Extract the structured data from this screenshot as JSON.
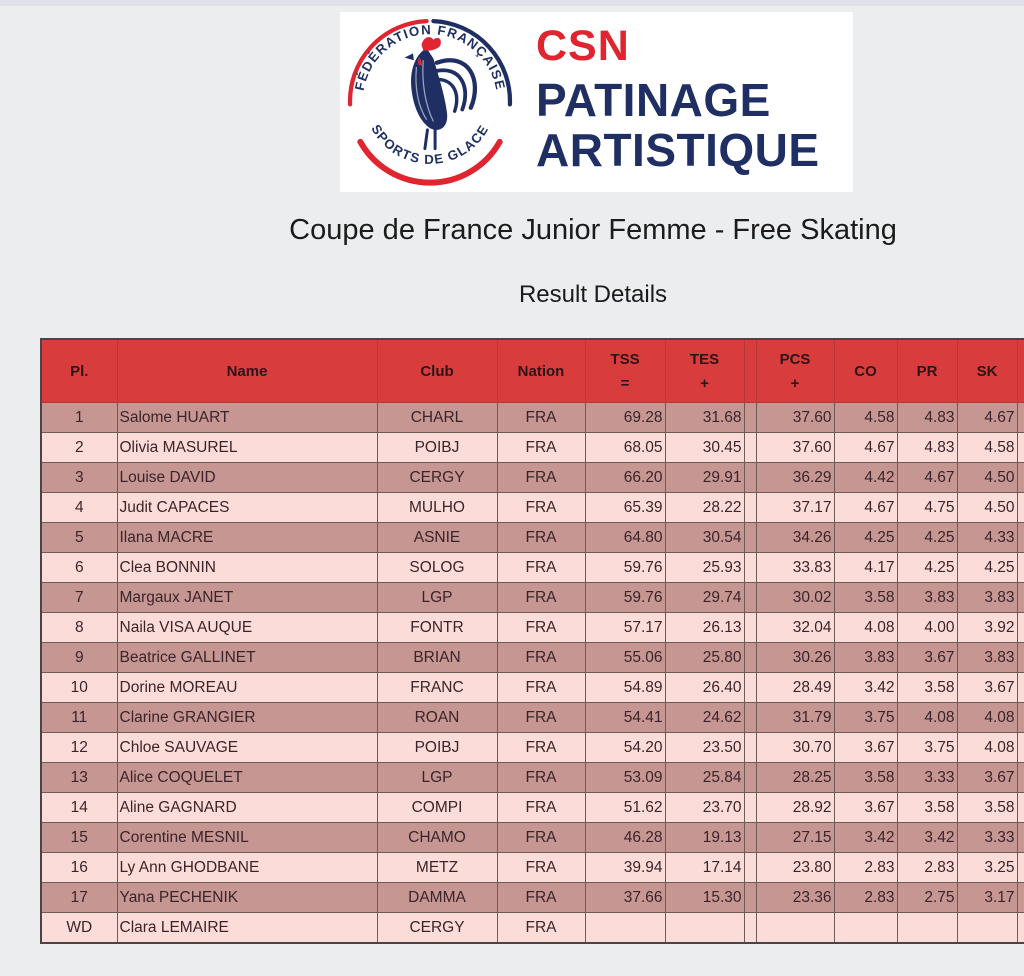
{
  "brand": {
    "acronym": "CSN",
    "title_line1": "PATINAGE",
    "title_line2": "ARTISTIQUE",
    "org_line1": "FÉDÉRATION FRANÇAISE",
    "org_line2": "SPORTS DE GLACE",
    "accent_red": "#e02530",
    "navy": "#1f2f63"
  },
  "page": {
    "title": "Coupe de France Junior Femme - Free Skating",
    "subtitle": "Result Details",
    "background": "#ecedee"
  },
  "table": {
    "header_bg": "#d93c3c",
    "row_dark": "#c69692",
    "row_light": "#fcdcd8",
    "columns": [
      {
        "key": "pl",
        "label": "Pl.",
        "sub": ""
      },
      {
        "key": "name",
        "label": "Name",
        "sub": ""
      },
      {
        "key": "club",
        "label": "Club",
        "sub": ""
      },
      {
        "key": "nation",
        "label": "Nation",
        "sub": ""
      },
      {
        "key": "tss",
        "label": "TSS",
        "sub": "="
      },
      {
        "key": "tes",
        "label": "TES",
        "sub": "+"
      },
      {
        "key": "sep",
        "label": "",
        "sub": ""
      },
      {
        "key": "pcs",
        "label": "PCS",
        "sub": "+"
      },
      {
        "key": "co",
        "label": "CO",
        "sub": ""
      },
      {
        "key": "pr",
        "label": "PR",
        "sub": ""
      },
      {
        "key": "sk",
        "label": "SK",
        "sub": ""
      },
      {
        "key": "trail",
        "label": "",
        "sub": ""
      }
    ],
    "rows": [
      {
        "pl": "1",
        "name": "Salome HUART",
        "club": "CHARL",
        "nation": "FRA",
        "tss": "69.28",
        "tes": "31.68",
        "pcs": "37.60",
        "co": "4.58",
        "pr": "4.83",
        "sk": "4.67"
      },
      {
        "pl": "2",
        "name": "Olivia MASUREL",
        "club": "POIBJ",
        "nation": "FRA",
        "tss": "68.05",
        "tes": "30.45",
        "pcs": "37.60",
        "co": "4.67",
        "pr": "4.83",
        "sk": "4.58"
      },
      {
        "pl": "3",
        "name": "Louise DAVID",
        "club": "CERGY",
        "nation": "FRA",
        "tss": "66.20",
        "tes": "29.91",
        "pcs": "36.29",
        "co": "4.42",
        "pr": "4.67",
        "sk": "4.50"
      },
      {
        "pl": "4",
        "name": "Judit CAPACES",
        "club": "MULHO",
        "nation": "FRA",
        "tss": "65.39",
        "tes": "28.22",
        "pcs": "37.17",
        "co": "4.67",
        "pr": "4.75",
        "sk": "4.50"
      },
      {
        "pl": "5",
        "name": "Ilana MACRE",
        "club": "ASNIE",
        "nation": "FRA",
        "tss": "64.80",
        "tes": "30.54",
        "pcs": "34.26",
        "co": "4.25",
        "pr": "4.25",
        "sk": "4.33"
      },
      {
        "pl": "6",
        "name": "Clea BONNIN",
        "club": "SOLOG",
        "nation": "FRA",
        "tss": "59.76",
        "tes": "25.93",
        "pcs": "33.83",
        "co": "4.17",
        "pr": "4.25",
        "sk": "4.25"
      },
      {
        "pl": "7",
        "name": "Margaux JANET",
        "club": "LGP",
        "nation": "FRA",
        "tss": "59.76",
        "tes": "29.74",
        "pcs": "30.02",
        "co": "3.58",
        "pr": "3.83",
        "sk": "3.83"
      },
      {
        "pl": "8",
        "name": "Naila VISA AUQUE",
        "club": "FONTR",
        "nation": "FRA",
        "tss": "57.17",
        "tes": "26.13",
        "pcs": "32.04",
        "co": "4.08",
        "pr": "4.00",
        "sk": "3.92"
      },
      {
        "pl": "9",
        "name": "Beatrice GALLINET",
        "club": "BRIAN",
        "nation": "FRA",
        "tss": "55.06",
        "tes": "25.80",
        "pcs": "30.26",
        "co": "3.83",
        "pr": "3.67",
        "sk": "3.83"
      },
      {
        "pl": "10",
        "name": "Dorine MOREAU",
        "club": "FRANC",
        "nation": "FRA",
        "tss": "54.89",
        "tes": "26.40",
        "pcs": "28.49",
        "co": "3.42",
        "pr": "3.58",
        "sk": "3.67"
      },
      {
        "pl": "11",
        "name": "Clarine GRANGIER",
        "club": "ROAN",
        "nation": "FRA",
        "tss": "54.41",
        "tes": "24.62",
        "pcs": "31.79",
        "co": "3.75",
        "pr": "4.08",
        "sk": "4.08"
      },
      {
        "pl": "12",
        "name": "Chloe SAUVAGE",
        "club": "POIBJ",
        "nation": "FRA",
        "tss": "54.20",
        "tes": "23.50",
        "pcs": "30.70",
        "co": "3.67",
        "pr": "3.75",
        "sk": "4.08"
      },
      {
        "pl": "13",
        "name": "Alice COQUELET",
        "club": "LGP",
        "nation": "FRA",
        "tss": "53.09",
        "tes": "25.84",
        "pcs": "28.25",
        "co": "3.58",
        "pr": "3.33",
        "sk": "3.67"
      },
      {
        "pl": "14",
        "name": "Aline GAGNARD",
        "club": "COMPI",
        "nation": "FRA",
        "tss": "51.62",
        "tes": "23.70",
        "pcs": "28.92",
        "co": "3.67",
        "pr": "3.58",
        "sk": "3.58"
      },
      {
        "pl": "15",
        "name": "Corentine MESNIL",
        "club": "CHAMO",
        "nation": "FRA",
        "tss": "46.28",
        "tes": "19.13",
        "pcs": "27.15",
        "co": "3.42",
        "pr": "3.42",
        "sk": "3.33"
      },
      {
        "pl": "16",
        "name": "Ly Ann GHODBANE",
        "club": "METZ",
        "nation": "FRA",
        "tss": "39.94",
        "tes": "17.14",
        "pcs": "23.80",
        "co": "2.83",
        "pr": "2.83",
        "sk": "3.25"
      },
      {
        "pl": "17",
        "name": "Yana PECHENIK",
        "club": "DAMMA",
        "nation": "FRA",
        "tss": "37.66",
        "tes": "15.30",
        "pcs": "23.36",
        "co": "2.83",
        "pr": "2.75",
        "sk": "3.17"
      },
      {
        "pl": "WD",
        "name": "Clara LEMAIRE",
        "club": "CERGY",
        "nation": "FRA",
        "tss": "",
        "tes": "",
        "pcs": "",
        "co": "",
        "pr": "",
        "sk": ""
      }
    ]
  }
}
